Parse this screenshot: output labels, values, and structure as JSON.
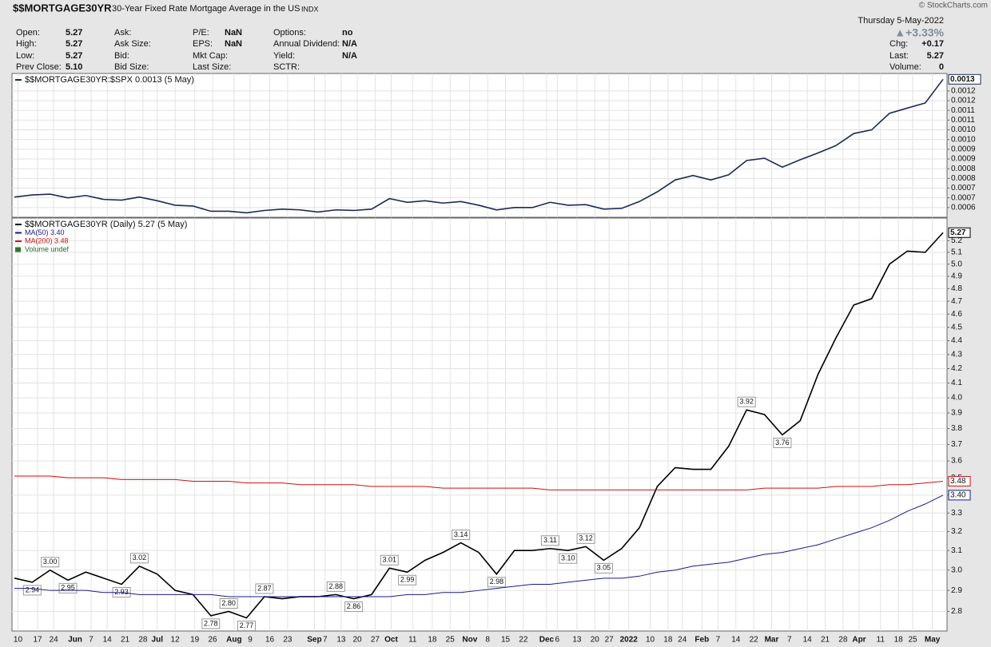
{
  "header": {
    "symbol": "$$MORTGAGE30YR",
    "name": "30-Year Fixed Rate Mortgage Average in the US",
    "exchange": "INDX",
    "date": "Thursday  5-May-2022",
    "change_pct": "▲+3.33%",
    "copyright": "© StockCharts.com",
    "quote": [
      [
        {
          "label": "Open:",
          "value": "5.27"
        },
        {
          "label": "High:",
          "value": "5.27"
        },
        {
          "label": "Low:",
          "value": "5.27"
        },
        {
          "label": "Prev Close:",
          "value": "5.10"
        }
      ],
      [
        {
          "label": "Ask:"
        },
        {
          "label": "Ask Size:"
        },
        {
          "label": "Bid:"
        },
        {
          "label": "Bid Size:"
        }
      ],
      [
        {
          "label": "P/E:",
          "value": "NaN"
        },
        {
          "label": "EPS:",
          "value": "NaN"
        },
        {
          "label": "Mkt Cap:"
        },
        {
          "label": "Last Size:"
        }
      ],
      [
        {
          "label": "Options:",
          "value": "no"
        },
        {
          "label": "Annual Dividend:",
          "value": "N/A"
        },
        {
          "label": "Yield:",
          "value": "N/A"
        },
        {
          "label": "SCTR:"
        }
      ]
    ],
    "right": [
      {
        "label": "Chg:",
        "value": "+0.17"
      },
      {
        "label": "Last:",
        "value": "5.27"
      },
      {
        "label": "Volume:",
        "value": "0"
      }
    ]
  },
  "chart_data": [
    {
      "type": "line",
      "xlim": [
        0,
        52
      ],
      "ylim": [
        0.00055,
        0.00129
      ],
      "yticks": [
        0.0006,
        {
          "value": 0.00065,
          "label": "0.0007"
        },
        0.0007,
        {
          "value": 0.00075,
          "label": "0.0008"
        },
        0.0008,
        {
          "value": 0.00085,
          "label": "0.0009"
        },
        0.0009,
        {
          "value": 0.00095,
          "label": "0.0010"
        },
        {
          "value": 0.001,
          "label": "0.0010"
        },
        {
          "value": 0.00105,
          "label": "0.0011"
        },
        0.0011,
        {
          "value": 0.00115,
          "label": "0.0012"
        },
        0.0012
      ],
      "series": [
        {
          "name": "$$MORTGAGE30YR:$SPX 0.0013 (5 May)",
          "color": "#1c2a55",
          "end_label": "0.0013",
          "values": [
            0.000654,
            0.000665,
            0.000669,
            0.00065,
            0.000662,
            0.000642,
            0.000638,
            0.000654,
            0.000635,
            0.000612,
            0.000608,
            0.000581,
            0.000581,
            0.000573,
            0.000585,
            0.000592,
            0.000588,
            0.000577,
            0.000588,
            0.000585,
            0.000592,
            0.000646,
            0.000627,
            0.000635,
            0.000623,
            0.000631,
            0.000612,
            0.000588,
            0.0006,
            0.0006,
            0.000627,
            0.000612,
            0.000615,
            0.000592,
            0.000596,
            0.000631,
            0.000681,
            0.000742,
            0.000765,
            0.000742,
            0.000769,
            0.000842,
            0.000854,
            0.000808,
            0.000846,
            0.000881,
            0.000919,
            0.000981,
            0.001,
            0.001085,
            0.001112,
            0.001138,
            0.00126
          ]
        }
      ]
    },
    {
      "type": "line",
      "log_scale": true,
      "xlim": [
        0,
        52
      ],
      "ylim": [
        2.71,
        5.4
      ],
      "volume_legend": "Volume undef",
      "yticks": [
        2.8,
        2.9,
        {
          "value": 3,
          "label": "3.0"
        },
        3.1,
        3.2,
        3.3,
        3.4,
        3.5,
        3.6,
        3.7,
        3.8,
        3.9,
        {
          "value": 4,
          "label": "4.0"
        },
        4.1,
        4.2,
        4.3,
        4.4,
        4.5,
        4.6,
        4.7,
        4.8,
        4.9,
        {
          "value": 5,
          "label": "5.0"
        },
        5.1,
        5.2
      ],
      "xticks": [
        {
          "value": 0.2,
          "label": "10"
        },
        {
          "value": 1.3,
          "label": "17"
        },
        {
          "value": 2.2,
          "label": "24"
        },
        {
          "value": 3.4,
          "label": "Jun"
        },
        {
          "value": 4.3,
          "label": "7"
        },
        {
          "value": 5.2,
          "label": "14"
        },
        {
          "value": 6.2,
          "label": "21"
        },
        {
          "value": 7.2,
          "label": "28"
        },
        {
          "value": 8.0,
          "label": "Jul"
        },
        {
          "value": 9.0,
          "label": "12"
        },
        {
          "value": 10.1,
          "label": "19"
        },
        {
          "value": 11.1,
          "label": "26"
        },
        {
          "value": 12.3,
          "label": "Aug"
        },
        {
          "value": 13.2,
          "label": "9"
        },
        {
          "value": 14.3,
          "label": "16"
        },
        {
          "value": 15.3,
          "label": "23"
        },
        {
          "value": 16.8,
          "label": "Sep"
        },
        {
          "value": 17.4,
          "label": "7"
        },
        {
          "value": 18.3,
          "label": "13"
        },
        {
          "value": 19.2,
          "label": "20"
        },
        {
          "value": 20.2,
          "label": "27"
        },
        {
          "value": 21.1,
          "label": "Oct"
        },
        {
          "value": 22.3,
          "label": "11"
        },
        {
          "value": 23.4,
          "label": "18"
        },
        {
          "value": 24.4,
          "label": "25"
        },
        {
          "value": 25.5,
          "label": "Nov"
        },
        {
          "value": 26.5,
          "label": "8"
        },
        {
          "value": 27.5,
          "label": "15"
        },
        {
          "value": 28.5,
          "label": "22"
        },
        {
          "value": 29.8,
          "label": "Dec"
        },
        {
          "value": 30.4,
          "label": "6"
        },
        {
          "value": 31.5,
          "label": "13"
        },
        {
          "value": 32.5,
          "label": "20"
        },
        {
          "value": 33.3,
          "label": "27"
        },
        {
          "value": 34.4,
          "label": "2022"
        },
        {
          "value": 35.6,
          "label": "10"
        },
        {
          "value": 36.6,
          "label": "18"
        },
        {
          "value": 37.4,
          "label": "24"
        },
        {
          "value": 38.5,
          "label": "Feb"
        },
        {
          "value": 39.4,
          "label": "7"
        },
        {
          "value": 40.4,
          "label": "14"
        },
        {
          "value": 41.4,
          "label": "22"
        },
        {
          "value": 42.4,
          "label": "Mar"
        },
        {
          "value": 43.4,
          "label": "7"
        },
        {
          "value": 44.4,
          "label": "14"
        },
        {
          "value": 45.4,
          "label": "21"
        },
        {
          "value": 46.4,
          "label": "28"
        },
        {
          "value": 47.3,
          "label": "Apr"
        },
        {
          "value": 48.5,
          "label": "11"
        },
        {
          "value": 49.5,
          "label": "18"
        },
        {
          "value": 50.3,
          "label": "25"
        },
        {
          "value": 51.4,
          "label": "May"
        }
      ],
      "series": [
        {
          "name": "$$MORTGAGE30YR (Daily) 5.27 (5 May)",
          "color": "#000000",
          "values": [
            2.96,
            2.94,
            3.0,
            2.95,
            2.99,
            2.96,
            2.93,
            3.02,
            2.98,
            2.9,
            2.88,
            2.78,
            2.8,
            2.77,
            2.87,
            2.86,
            2.87,
            2.87,
            2.88,
            2.86,
            2.88,
            3.01,
            2.99,
            3.05,
            3.09,
            3.14,
            3.09,
            2.98,
            3.1,
            3.1,
            3.11,
            3.1,
            3.12,
            3.05,
            3.11,
            3.22,
            3.45,
            3.56,
            3.55,
            3.55,
            3.69,
            3.92,
            3.89,
            3.76,
            3.85,
            4.16,
            4.42,
            4.67,
            4.72,
            5.0,
            5.11,
            5.1,
            5.27
          ],
          "value_labels": [
            null,
            "2.94",
            "3.00",
            "2.95",
            null,
            null,
            "2.93",
            "3.02",
            null,
            null,
            null,
            "2.78",
            "2.80",
            "2.77",
            "2.87",
            null,
            null,
            null,
            "2.88",
            "2.86",
            null,
            "3.01",
            "2.99",
            null,
            null,
            "3.14",
            null,
            "2.98",
            null,
            null,
            "3.11",
            "3.10",
            "3.12",
            "3.05",
            null,
            null,
            null,
            null,
            null,
            null,
            null,
            "3.92",
            null,
            "3.76",
            null,
            null,
            null,
            null,
            null,
            null,
            null,
            null,
            null
          ]
        },
        {
          "name": "MA(50) 3.40",
          "color": "#1a1a8c",
          "end_label": "3.40",
          "values": [
            2.91,
            2.91,
            2.9,
            2.9,
            2.9,
            2.89,
            2.89,
            2.88,
            2.88,
            2.88,
            2.88,
            2.88,
            2.87,
            2.87,
            2.87,
            2.87,
            2.87,
            2.87,
            2.87,
            2.87,
            2.87,
            2.87,
            2.88,
            2.88,
            2.89,
            2.89,
            2.9,
            2.91,
            2.92,
            2.93,
            2.93,
            2.94,
            2.95,
            2.96,
            2.96,
            2.97,
            2.99,
            3.0,
            3.02,
            3.03,
            3.04,
            3.06,
            3.08,
            3.09,
            3.11,
            3.13,
            3.16,
            3.19,
            3.22,
            3.26,
            3.31,
            3.35,
            3.4
          ]
        },
        {
          "name": "MA(200) 3.48",
          "color": "#cc1111",
          "end_label": "3.48",
          "values": [
            3.51,
            3.51,
            3.51,
            3.5,
            3.5,
            3.5,
            3.49,
            3.49,
            3.49,
            3.49,
            3.48,
            3.48,
            3.48,
            3.47,
            3.47,
            3.47,
            3.46,
            3.46,
            3.46,
            3.46,
            3.45,
            3.45,
            3.45,
            3.45,
            3.44,
            3.44,
            3.44,
            3.44,
            3.44,
            3.44,
            3.43,
            3.43,
            3.43,
            3.43,
            3.43,
            3.43,
            3.43,
            3.43,
            3.43,
            3.43,
            3.43,
            3.43,
            3.44,
            3.44,
            3.44,
            3.44,
            3.45,
            3.45,
            3.45,
            3.46,
            3.46,
            3.47,
            3.48
          ]
        }
      ]
    }
  ]
}
